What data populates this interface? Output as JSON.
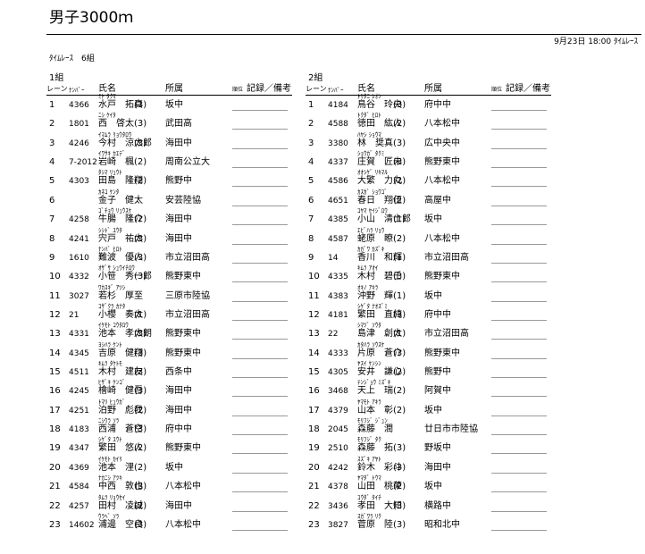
{
  "header": {
    "title": "男子3000ｍ",
    "datetime": "9月23日 18:00 ﾀｲﾑﾚｰｽ",
    "race": "ﾀｲﾑﾚｰｽ　6組"
  },
  "groups": [
    {
      "label": "1組",
      "columns": {
        "lane": "レーン",
        "number": "ﾅﾝﾊﾞｰ",
        "name": "氏名",
        "affiliation": "所属",
        "rank": "順位",
        "record": "記録／備考"
      },
      "rows": [
        {
          "lane": 1,
          "number": 4366,
          "kana": "ﾐﾄ ﾀｸﾏ",
          "name": "水戸　拓真",
          "grade": "(3)",
          "team": "坂中"
        },
        {
          "lane": 2,
          "number": 1801,
          "kana": "ﾆｼ ｹｲﾀ",
          "name": "西　啓太",
          "grade": "(3)",
          "team": "武田高"
        },
        {
          "lane": 3,
          "number": 4246,
          "kana": "ｲﾏﾑﾗ ﾘｮｳﾀﾛｳ",
          "name": "今村　涼太郎",
          "grade": "(3)",
          "team": "海田中"
        },
        {
          "lane": 4,
          "number": "7-2012",
          "kana": "ｲﾜｻｷ ｶｴﾃﾞ",
          "name": "岩崎　楓",
          "grade": "(2)",
          "team": "周南公立大"
        },
        {
          "lane": 5,
          "number": 4303,
          "kana": "ﾀｼﾏ ﾘｭｳﾄ",
          "name": "田島　隆翔",
          "grade": "(2)",
          "team": "熊野中"
        },
        {
          "lane": 6,
          "kana": "ｶﾈｺ ｹﾝﾀ",
          "name": "金子　健太",
          "team": "安芸陸協"
        },
        {
          "lane": 7,
          "number": 4258,
          "kana": "ｺﾞﾁｮｳ ﾘｭｳｽｹ",
          "name": "牛腸　隆介",
          "grade": "(2)",
          "team": "海田中"
        },
        {
          "lane": 8,
          "number": 4241,
          "kana": "ｼｼﾄﾞ ﾕｳﾀ",
          "name": "宍戸　祐太",
          "grade": "(3)",
          "team": "海田中"
        },
        {
          "lane": 9,
          "number": 1610,
          "kana": "ﾅﾝﾊﾞ ﾋﾛﾄ",
          "name": "難波　優人",
          "grade": "(3)",
          "team": "市立沼田高"
        },
        {
          "lane": 10,
          "number": 4332,
          "kana": "ｵｻﾞｻ ｼｭｳｲﾁﾛｳ",
          "name": "小笹　秀一郎",
          "grade": "(3)",
          "team": "熊野東中"
        },
        {
          "lane": 11,
          "number": 3027,
          "kana": "ﾜｶｽｷﾞ ｱﾂｼ",
          "name": "若杉　厚至",
          "team": "三原市陸協"
        },
        {
          "lane": 12,
          "number": 21,
          "kana": "ｺｻﾞｸﾗ ｶﾅﾀ",
          "name": "小櫻　奏太",
          "grade": "(1)",
          "team": "市立沼田高"
        },
        {
          "lane": 13,
          "number": 4331,
          "kana": "ｲｹﾓﾄ ｺｳﾀﾛｳ",
          "name": "池本　孝太朗",
          "grade": "(3)",
          "team": "熊野東中"
        },
        {
          "lane": 14,
          "number": 4345,
          "kana": "ﾖｼﾊﾗ ｹﾝﾄ",
          "name": "吉原　健翔",
          "grade": "(3)",
          "team": "熊野東中"
        },
        {
          "lane": 15,
          "number": 4511,
          "kana": "ｷﾑﾗ ﾀｹﾄﾓ",
          "name": "木村　建友",
          "grade": "(3)",
          "team": "西条中"
        },
        {
          "lane": 16,
          "number": 4245,
          "kana": "ﾋｻﾞｷ ｹﾝｺﾞ",
          "name": "檜崎　健吾",
          "grade": "(3)",
          "team": "海田中"
        },
        {
          "lane": 17,
          "number": 4251,
          "kana": "ﾄﾏﾘ ﾋｭｳｶﾞ",
          "name": "泊野　彪我",
          "grade": "(2)",
          "team": "海田中"
        },
        {
          "lane": 18,
          "number": 4183,
          "kana": "ﾆｼｳﾗ ｿﾗ",
          "name": "西浦　蒼空",
          "grade": "(3)",
          "team": "府中中"
        },
        {
          "lane": 19,
          "number": 4347,
          "kana": "ｼｹﾞﾀ ﾕｳﾄ",
          "name": "繁田　悠人",
          "grade": "(2)",
          "team": "熊野東中"
        },
        {
          "lane": 20,
          "number": 4369,
          "kana": "ｲｹﾓﾄ ｶｲﾘ",
          "name": "池本　浬",
          "grade": "(2)",
          "team": "坂中"
        },
        {
          "lane": 21,
          "number": 4584,
          "kana": "ﾅｶﾆｼ ｱﾂｷ",
          "name": "中西　敦也",
          "grade": "(3)",
          "team": "八本松中"
        },
        {
          "lane": 22,
          "number": 4257,
          "kana": "ﾀﾑﾗ ﾘｮｳｾｲ",
          "name": "田村　凌誠",
          "grade": "(2)",
          "team": "海田中"
        },
        {
          "lane": 23,
          "number": 14602,
          "kana": "ｳﾗﾍﾞ ｿﾗ",
          "name": "浦邊　空良",
          "grade": "(3)",
          "team": "八本松中"
        }
      ]
    },
    {
      "label": "2組",
      "columns": {
        "lane": "レーン",
        "number": "ﾅﾝﾊﾞｰ",
        "name": "氏名",
        "affiliation": "所属",
        "rank": "順位",
        "record": "記録／備考"
      },
      "rows": [
        {
          "lane": 1,
          "number": 4184,
          "kana": "ﾄﾘﾀﾆ ﾚｵﾝ",
          "name": "鳥谷　玲央",
          "grade": "(3)",
          "team": "府中中"
        },
        {
          "lane": 2,
          "number": 4588,
          "kana": "ﾄｸﾀﾞ ﾋﾛﾄ",
          "name": "徳田　紘人",
          "grade": "(2)",
          "team": "八本松中"
        },
        {
          "lane": 3,
          "number": 3380,
          "kana": "ﾊﾔｼ ｼｮｳﾏ",
          "name": "林　奨真",
          "grade": "(3)",
          "team": "広中央中"
        },
        {
          "lane": 4,
          "number": 4337,
          "kana": "ｼｮｳｶﾞ ﾀｸﾐ",
          "name": "庄賀　匠未",
          "grade": "(3)",
          "team": "熊野東中"
        },
        {
          "lane": 5,
          "number": 4586,
          "kana": "ｵｵｼｹﾞ ﾘｷﾏﾙ",
          "name": "大繁　力丸",
          "grade": "(2)",
          "team": "八本松中"
        },
        {
          "lane": 6,
          "number": 4651,
          "kana": "ｶｽｶﾞ ｼｮｳｺﾞ",
          "name": "春日　翔伍",
          "grade": "(2)",
          "team": "高屋中"
        },
        {
          "lane": 7,
          "number": 4385,
          "kana": "ｺﾔﾏ ｾｲｼﾞﾛｳ",
          "name": "小山　清士郎",
          "grade": "(1)",
          "team": "坂中"
        },
        {
          "lane": 8,
          "number": 4587,
          "kana": "ｴﾋﾞﾊﾗ ﾘｮｳ",
          "name": "蛯原　瞭",
          "grade": "(2)",
          "team": "八本松中"
        },
        {
          "lane": 9,
          "number": 14,
          "kana": "ｶｶﾞﾜ ｶｽﾞｷ",
          "name": "香川　和輝",
          "grade": "(1)",
          "team": "市立沼田高"
        },
        {
          "lane": 10,
          "number": 4335,
          "kana": "ｷﾑﾗ ｱｵｲ",
          "name": "木村　碧壬",
          "grade": "(3)",
          "team": "熊野東中"
        },
        {
          "lane": 11,
          "number": 4383,
          "kana": "ｵｷﾉ ｱｷﾗ",
          "name": "沖野　輝",
          "grade": "(1)",
          "team": "坂中"
        },
        {
          "lane": 12,
          "number": 4181,
          "kana": "ｼｹﾞﾀ ﾅｵｽﾞﾐ",
          "name": "繁田　直純",
          "grade": "(3)",
          "team": "府中中"
        },
        {
          "lane": 13,
          "number": 22,
          "kana": "ｼﾏﾂﾞ ｿｳﾀ",
          "name": "島津　創太",
          "grade": "(1)",
          "team": "市立沼田高"
        },
        {
          "lane": 14,
          "number": 4333,
          "kana": "ｶﾀﾊﾗ ｿｳｽｹ",
          "name": "片原　蒼介",
          "grade": "(3)",
          "team": "熊野東中"
        },
        {
          "lane": 15,
          "number": 4305,
          "kana": "ﾔｽｲ ｹﾝｼﾝ",
          "name": "安井　謙心",
          "grade": "(2)",
          "team": "熊野中"
        },
        {
          "lane": 16,
          "number": 3468,
          "kana": "ﾃﾝｼﾞｮｳ ﾐｽﾞｷ",
          "name": "天上　瑞",
          "grade": "(2)",
          "team": "阿賀中"
        },
        {
          "lane": 17,
          "number": 4379,
          "kana": "ﾔﾏﾓﾄ ｱｷﾗ",
          "name": "山本　彰",
          "grade": "(2)",
          "team": "坂中"
        },
        {
          "lane": 18,
          "number": 2045,
          "kana": "ﾓﾘﾌｼﾞ ｼﾞｭﾝ",
          "name": "森藤　潤",
          "team": "廿日市市陸協"
        },
        {
          "lane": 19,
          "number": 2510,
          "kana": "ﾓﾘﾌｼﾞ ﾀｸ",
          "name": "森藤　拓",
          "grade": "(3)",
          "team": "野坂中"
        },
        {
          "lane": 20,
          "number": 4242,
          "kana": "ｽｽﾞｷ ｱﾔﾄ",
          "name": "鈴木　彩斗",
          "grade": "(3)",
          "team": "海田中"
        },
        {
          "lane": 21,
          "number": 4378,
          "kana": "ﾔﾏﾀﾞ ﾄｳﾏ",
          "name": "山田　桃茉",
          "grade": "(2)",
          "team": "坂中"
        },
        {
          "lane": 22,
          "number": 3436,
          "kana": "ｺｳﾀﾞ ﾀｲﾁ",
          "name": "孝田　大知",
          "grade": "(3)",
          "team": "横路中"
        },
        {
          "lane": 23,
          "number": 3827,
          "kana": "ｽｶﾞﾜﾗ ﾘｸ",
          "name": "菅原　陸",
          "grade": "(3)",
          "team": "昭和北中"
        }
      ]
    }
  ]
}
